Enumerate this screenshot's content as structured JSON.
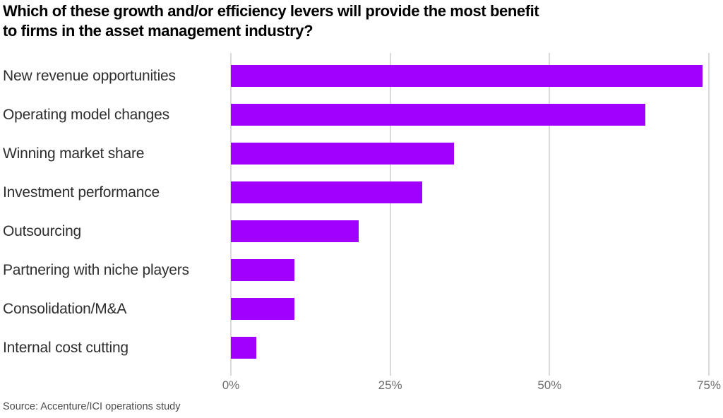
{
  "chart_data": {
    "type": "bar",
    "orientation": "horizontal",
    "title": "Which of these growth and/or efficiency levers will provide the most benefit to firms in the asset management industry?",
    "title_lines": [
      "Which of these growth and/or efficiency levers will provide the most benefit",
      "to firms in the asset management industry?"
    ],
    "categories": [
      "New revenue opportunities",
      "Operating model changes",
      "Winning market share",
      "Investment performance",
      "Outsourcing",
      "Partnering with niche players",
      "Consolidation/M&A",
      "Internal cost cutting"
    ],
    "values": [
      74,
      65,
      35,
      30,
      20,
      10,
      10,
      4
    ],
    "unit": "%",
    "xlabel": "",
    "ylabel": "",
    "xlim": [
      0,
      75
    ],
    "x_ticks": [
      "0%",
      "25%",
      "50%",
      "75%"
    ],
    "x_tick_values": [
      0,
      25,
      50,
      75
    ],
    "grid": "vertical-only",
    "legend": "none"
  },
  "colors": {
    "bar": "#A100FF",
    "gridline": "#dadada",
    "title_text": "#000000",
    "label_text": "#2e2e2e",
    "tick_text": "#6e6e6e",
    "source_text": "#4d4d4d",
    "background": "#ffffff"
  },
  "footer": {
    "source": "Source: Accenture/ICI operations study"
  }
}
